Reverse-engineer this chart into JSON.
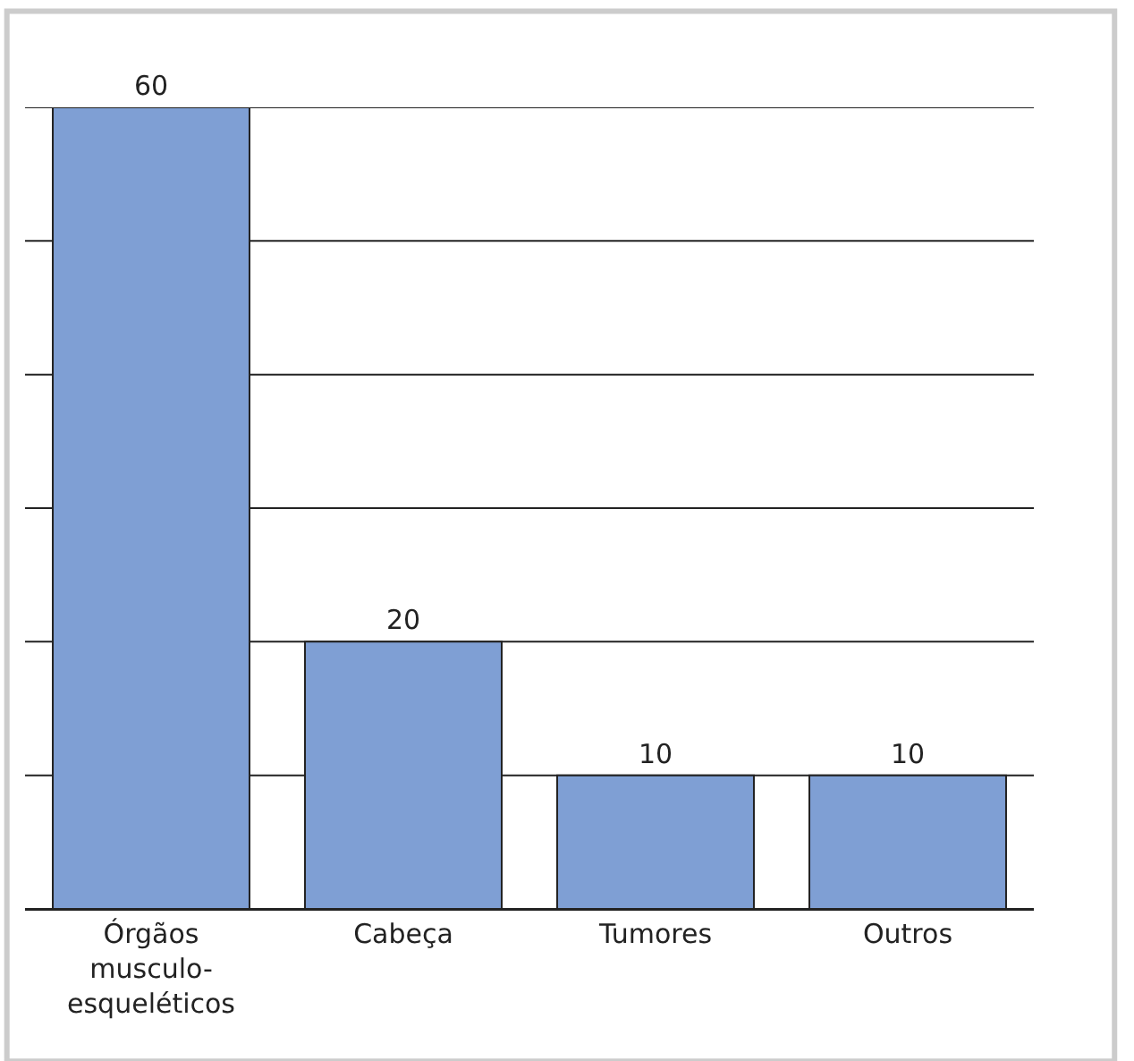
{
  "chart_data": {
    "type": "bar",
    "categories": [
      "Órgãos musculo-esqueléticos",
      "Cabeça",
      "Tumores",
      "Outros"
    ],
    "values": [
      60,
      20,
      10,
      10
    ],
    "color": "#7f9fd4",
    "ylim": [
      0,
      60
    ],
    "yticks": [
      {
        "value": 0,
        "label": null
      },
      {
        "value": 10,
        "label": null
      },
      {
        "value": 20,
        "label": null
      },
      {
        "value": 30,
        "label": null
      },
      {
        "value": 40,
        "label": null
      },
      {
        "value": 50,
        "label": null
      },
      {
        "value": 60,
        "label": null
      }
    ],
    "tick_labels": "x",
    "grid": "y",
    "data_labels": true
  }
}
